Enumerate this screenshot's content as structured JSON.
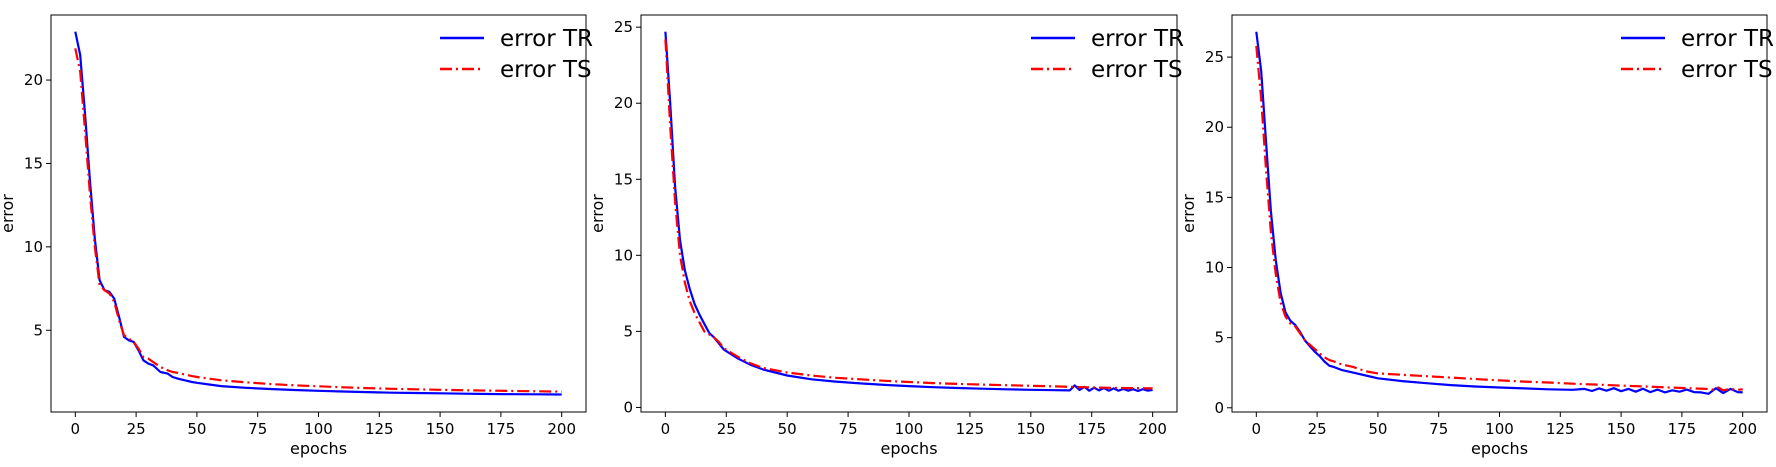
{
  "figure": {
    "background": "#ffffff"
  },
  "chart_data": [
    {
      "type": "line",
      "xlabel": "epochs",
      "ylabel": "error",
      "xlim": [
        -10,
        210
      ],
      "ylim": [
        0.1,
        23.9
      ],
      "xticks": [
        0,
        25,
        50,
        75,
        100,
        125,
        150,
        175,
        200
      ],
      "yticks": [
        5,
        10,
        15,
        20
      ],
      "legend": {
        "placement": "top-right",
        "entries": [
          "error TR",
          "error TS"
        ]
      },
      "series": [
        {
          "name": "error TR",
          "color": "#0000ff",
          "style": "solid",
          "x": [
            0,
            2,
            4,
            6,
            8,
            10,
            12,
            14,
            16,
            18,
            20,
            22,
            24,
            26,
            28,
            30,
            32,
            35,
            38,
            40,
            42,
            45,
            48,
            50,
            55,
            60,
            70,
            80,
            90,
            100,
            110,
            120,
            130,
            140,
            150,
            160,
            170,
            180,
            190,
            200
          ],
          "y": [
            22.9,
            21.5,
            18.0,
            14.0,
            10.5,
            8.0,
            7.4,
            7.3,
            6.9,
            5.8,
            4.6,
            4.4,
            4.3,
            3.8,
            3.2,
            3.0,
            2.9,
            2.5,
            2.4,
            2.2,
            2.1,
            2.0,
            1.9,
            1.85,
            1.75,
            1.65,
            1.55,
            1.48,
            1.42,
            1.37,
            1.33,
            1.29,
            1.26,
            1.24,
            1.22,
            1.2,
            1.18,
            1.17,
            1.16,
            1.15
          ]
        },
        {
          "name": "error TS",
          "color": "#ff0000",
          "style": "dashdot",
          "x": [
            0,
            2,
            4,
            6,
            8,
            10,
            12,
            14,
            16,
            18,
            20,
            22,
            24,
            26,
            28,
            30,
            32,
            35,
            38,
            40,
            42,
            45,
            48,
            50,
            55,
            60,
            70,
            80,
            90,
            100,
            110,
            120,
            130,
            140,
            150,
            160,
            170,
            180,
            190,
            200
          ],
          "y": [
            21.9,
            20.5,
            17.0,
            13.2,
            10.0,
            7.7,
            7.4,
            7.2,
            6.7,
            5.6,
            4.7,
            4.5,
            4.3,
            3.9,
            3.4,
            3.3,
            3.1,
            2.8,
            2.6,
            2.5,
            2.45,
            2.35,
            2.25,
            2.2,
            2.1,
            2.0,
            1.88,
            1.78,
            1.7,
            1.64,
            1.58,
            1.53,
            1.49,
            1.46,
            1.43,
            1.4,
            1.38,
            1.36,
            1.34,
            1.32
          ]
        }
      ]
    },
    {
      "type": "line",
      "xlabel": "epochs",
      "ylabel": "error",
      "xlim": [
        -10,
        210
      ],
      "ylim": [
        -0.3,
        25.8
      ],
      "xticks": [
        0,
        25,
        50,
        75,
        100,
        125,
        150,
        175,
        200
      ],
      "yticks": [
        0,
        5,
        10,
        15,
        20,
        25
      ],
      "legend": {
        "placement": "top-right",
        "entries": [
          "error TR",
          "error TS"
        ]
      },
      "series": [
        {
          "name": "error TR",
          "color": "#0000ff",
          "style": "solid",
          "x": [
            0,
            2,
            4,
            6,
            8,
            10,
            12,
            14,
            16,
            18,
            20,
            22,
            24,
            26,
            30,
            35,
            40,
            50,
            60,
            70,
            80,
            90,
            100,
            110,
            120,
            130,
            140,
            150,
            160,
            166,
            168,
            170,
            172,
            174,
            176,
            178,
            180,
            182,
            184,
            186,
            188,
            190,
            192,
            194,
            196,
            198,
            200
          ],
          "y": [
            24.7,
            20.0,
            14.5,
            11.0,
            9.0,
            7.8,
            6.8,
            6.1,
            5.5,
            4.9,
            4.6,
            4.2,
            3.8,
            3.6,
            3.2,
            2.8,
            2.5,
            2.1,
            1.85,
            1.7,
            1.58,
            1.48,
            1.4,
            1.33,
            1.28,
            1.23,
            1.19,
            1.16,
            1.13,
            1.12,
            1.45,
            1.15,
            1.35,
            1.1,
            1.3,
            1.12,
            1.28,
            1.1,
            1.25,
            1.1,
            1.22,
            1.1,
            1.2,
            1.08,
            1.2,
            1.1,
            1.15
          ]
        },
        {
          "name": "error TS",
          "color": "#ff0000",
          "style": "dashdot",
          "x": [
            0,
            2,
            4,
            6,
            8,
            10,
            12,
            14,
            16,
            18,
            20,
            22,
            24,
            26,
            30,
            35,
            40,
            50,
            60,
            70,
            80,
            90,
            100,
            110,
            120,
            130,
            140,
            150,
            160,
            170,
            180,
            190,
            200
          ],
          "y": [
            24.2,
            18.5,
            13.5,
            10.0,
            8.2,
            7.0,
            6.2,
            5.6,
            5.0,
            4.8,
            4.6,
            4.3,
            3.9,
            3.7,
            3.3,
            2.9,
            2.6,
            2.3,
            2.1,
            1.95,
            1.85,
            1.75,
            1.67,
            1.6,
            1.55,
            1.5,
            1.46,
            1.42,
            1.38,
            1.34,
            1.3,
            1.27,
            1.25
          ]
        }
      ]
    },
    {
      "type": "line",
      "xlabel": "epochs",
      "ylabel": "error",
      "xlim": [
        -10,
        210
      ],
      "ylim": [
        -0.3,
        28.0
      ],
      "xticks": [
        0,
        25,
        50,
        75,
        100,
        125,
        150,
        175,
        200
      ],
      "yticks": [
        0,
        5,
        10,
        15,
        20,
        25
      ],
      "legend": {
        "placement": "top-right",
        "entries": [
          "error TR",
          "error TS"
        ]
      },
      "series": [
        {
          "name": "error TR",
          "color": "#0000ff",
          "style": "solid",
          "x": [
            0,
            2,
            4,
            6,
            8,
            10,
            12,
            14,
            16,
            18,
            20,
            22,
            24,
            26,
            28,
            30,
            32,
            35,
            40,
            45,
            50,
            60,
            70,
            80,
            90,
            100,
            110,
            120,
            130,
            135,
            138,
            141,
            144,
            147,
            150,
            153,
            156,
            159,
            162,
            165,
            168,
            171,
            174,
            177,
            180,
            183,
            186,
            189,
            192,
            195,
            198,
            200
          ],
          "y": [
            26.8,
            24.0,
            19.0,
            14.0,
            10.5,
            8.2,
            6.8,
            6.2,
            5.9,
            5.4,
            4.8,
            4.4,
            4.0,
            3.7,
            3.3,
            3.0,
            2.9,
            2.7,
            2.5,
            2.3,
            2.1,
            1.9,
            1.75,
            1.62,
            1.52,
            1.45,
            1.38,
            1.32,
            1.28,
            1.35,
            1.2,
            1.38,
            1.22,
            1.4,
            1.18,
            1.35,
            1.15,
            1.36,
            1.12,
            1.3,
            1.1,
            1.25,
            1.15,
            1.3,
            1.12,
            1.1,
            1.0,
            1.4,
            1.05,
            1.35,
            1.12,
            1.1
          ]
        },
        {
          "name": "error TS",
          "color": "#ff0000",
          "style": "dashdot",
          "x": [
            0,
            2,
            4,
            6,
            8,
            10,
            12,
            14,
            16,
            18,
            20,
            22,
            24,
            26,
            28,
            30,
            32,
            35,
            40,
            45,
            50,
            60,
            70,
            80,
            90,
            100,
            110,
            120,
            130,
            140,
            150,
            160,
            170,
            180,
            185,
            188,
            190,
            192,
            195,
            198,
            200
          ],
          "y": [
            25.8,
            22.0,
            17.0,
            12.5,
            9.5,
            7.5,
            6.5,
            6.0,
            5.8,
            5.3,
            4.8,
            4.5,
            4.2,
            3.9,
            3.6,
            3.4,
            3.3,
            3.1,
            2.9,
            2.6,
            2.45,
            2.35,
            2.25,
            2.15,
            2.05,
            1.95,
            1.87,
            1.8,
            1.72,
            1.65,
            1.58,
            1.52,
            1.45,
            1.38,
            1.35,
            1.3,
            1.45,
            1.25,
            1.35,
            1.28,
            1.32
          ]
        }
      ]
    }
  ]
}
